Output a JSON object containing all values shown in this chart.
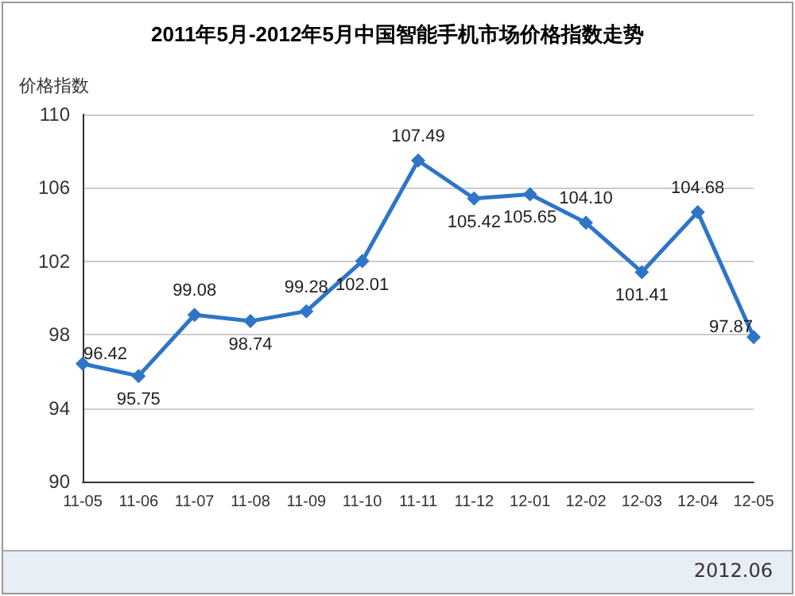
{
  "chart_data": {
    "type": "line",
    "title": "2011年5月-2012年5月中国智能手机市场价格指数走势",
    "ylabel": "价格指数",
    "categories": [
      "11-05",
      "11-06",
      "11-07",
      "11-08",
      "11-09",
      "11-10",
      "11-11",
      "11-12",
      "12-01",
      "12-02",
      "12-03",
      "12-04",
      "12-05"
    ],
    "series": [
      {
        "color": "#2e75c8",
        "values": [
          96.42,
          95.75,
          99.08,
          98.74,
          99.28,
          102.01,
          107.49,
          105.42,
          105.65,
          104.1,
          101.41,
          104.68,
          97.87
        ],
        "value_labels": [
          "96.42",
          "95.75",
          "99.08",
          "98.74",
          "99.28",
          "102.01",
          "107.49",
          "105.42",
          "105.65",
          "104.10",
          "101.41",
          "104.68",
          "97.87"
        ]
      }
    ],
    "ylim": [
      90,
      110
    ],
    "yticks": [
      90,
      94,
      98,
      102,
      106,
      110
    ],
    "grid": "y",
    "marker": "diamond",
    "line_style": "solid",
    "annotations": [
      "2012.06"
    ]
  }
}
